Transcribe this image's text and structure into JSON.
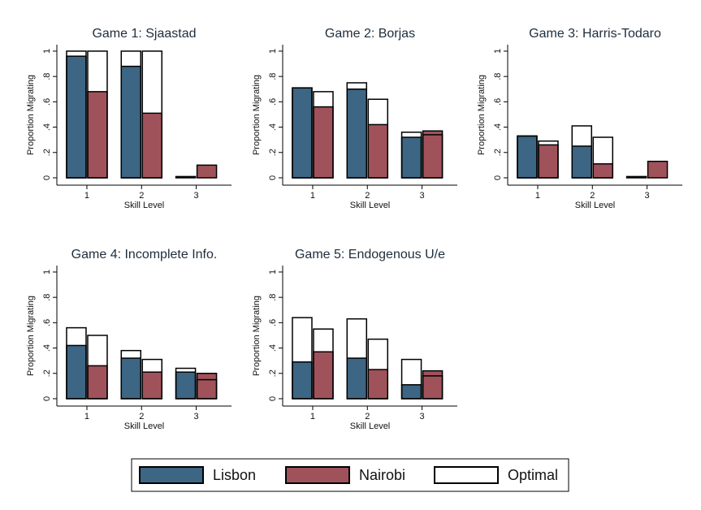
{
  "chart_data": [
    {
      "type": "bar",
      "title": "Game 1: Sjaastad",
      "xlabel": "Skill Level",
      "ylabel": "Proportion Migrating",
      "categories": [
        "1",
        "2",
        "3"
      ],
      "ylim": [
        -0.058,
        1.051
      ],
      "yticks": [
        0,
        {
          "value": 0.2,
          "label": ".2"
        },
        {
          "value": 0.4,
          "label": ".4"
        },
        {
          "value": 0.6,
          "label": ".6"
        },
        {
          "value": 0.8,
          "label": ".8"
        },
        1
      ],
      "series": [
        {
          "name": "Lisbon",
          "color": "#3d6584",
          "values": [
            0.96,
            0.88,
            0.01
          ],
          "optimal": [
            1.0,
            1.0,
            0
          ]
        },
        {
          "name": "Nairobi",
          "color": "#a0525a",
          "values": [
            0.68,
            0.51,
            0.1
          ],
          "optimal": [
            1.0,
            1.0,
            0
          ]
        }
      ]
    },
    {
      "type": "bar",
      "title": "Game 2: Borjas",
      "xlabel": "Skill Level",
      "ylabel": "Proportion Migrating",
      "categories": [
        "1",
        "2",
        "3"
      ],
      "ylim": [
        -0.058,
        1.051
      ],
      "yticks": [
        0,
        {
          "value": 0.2,
          "label": ".2"
        },
        {
          "value": 0.4,
          "label": ".4"
        },
        {
          "value": 0.6,
          "label": ".6"
        },
        {
          "value": 0.8,
          "label": ".8"
        },
        1
      ],
      "series": [
        {
          "name": "Lisbon",
          "color": "#3d6584",
          "values": [
            0.71,
            0.7,
            0.32
          ],
          "optimal": [
            0.71,
            0.75,
            0.36
          ]
        },
        {
          "name": "Nairobi",
          "color": "#a0525a",
          "values": [
            0.56,
            0.42,
            0.37
          ],
          "optimal": [
            0.68,
            0.62,
            0.34
          ]
        }
      ]
    },
    {
      "type": "bar",
      "title": "Game 3: Harris-Todaro",
      "xlabel": "Skill Level",
      "ylabel": "Proportion Migrating",
      "categories": [
        "1",
        "2",
        "3"
      ],
      "ylim": [
        -0.058,
        1.051
      ],
      "yticks": [
        0,
        {
          "value": 0.2,
          "label": ".2"
        },
        {
          "value": 0.4,
          "label": ".4"
        },
        {
          "value": 0.6,
          "label": ".6"
        },
        {
          "value": 0.8,
          "label": ".8"
        },
        1
      ],
      "series": [
        {
          "name": "Lisbon",
          "color": "#3d6584",
          "values": [
            0.33,
            0.25,
            0.01
          ],
          "optimal": [
            0.33,
            0.41,
            0
          ]
        },
        {
          "name": "Nairobi",
          "color": "#a0525a",
          "values": [
            0.26,
            0.11,
            0.13
          ],
          "optimal": [
            0.29,
            0.32,
            0
          ]
        }
      ]
    },
    {
      "type": "bar",
      "title": "Game 4: Incomplete Info.",
      "xlabel": "Skill Level",
      "ylabel": "Proportion Migrating",
      "categories": [
        "1",
        "2",
        "3"
      ],
      "ylim": [
        -0.058,
        1.051
      ],
      "yticks": [
        0,
        {
          "value": 0.2,
          "label": ".2"
        },
        {
          "value": 0.4,
          "label": ".4"
        },
        {
          "value": 0.6,
          "label": ".6"
        },
        {
          "value": 0.8,
          "label": ".8"
        },
        1
      ],
      "series": [
        {
          "name": "Lisbon",
          "color": "#3d6584",
          "values": [
            0.42,
            0.32,
            0.21
          ],
          "optimal": [
            0.56,
            0.38,
            0.24
          ]
        },
        {
          "name": "Nairobi",
          "color": "#a0525a",
          "values": [
            0.26,
            0.21,
            0.2
          ],
          "optimal": [
            0.5,
            0.31,
            0.15
          ]
        }
      ]
    },
    {
      "type": "bar",
      "title": "Game 5: Endogenous U/e",
      "xlabel": "Skill Level",
      "ylabel": "Proportion Migrating",
      "categories": [
        "1",
        "2",
        "3"
      ],
      "ylim": [
        -0.058,
        1.051
      ],
      "yticks": [
        0,
        {
          "value": 0.2,
          "label": ".2"
        },
        {
          "value": 0.4,
          "label": ".4"
        },
        {
          "value": 0.6,
          "label": ".6"
        },
        {
          "value": 0.8,
          "label": ".8"
        },
        1
      ],
      "series": [
        {
          "name": "Lisbon",
          "color": "#3d6584",
          "values": [
            0.29,
            0.32,
            0.11
          ],
          "optimal": [
            0.64,
            0.63,
            0.31
          ]
        },
        {
          "name": "Nairobi",
          "color": "#a0525a",
          "values": [
            0.37,
            0.23,
            0.22
          ],
          "optimal": [
            0.55,
            0.47,
            0.18
          ]
        }
      ]
    }
  ],
  "legend": {
    "items": [
      {
        "name": "Lisbon",
        "color": "#3d6584"
      },
      {
        "name": "Nairobi",
        "color": "#a0525a"
      },
      {
        "name": "Optimal",
        "color": "#ffffff"
      }
    ]
  }
}
